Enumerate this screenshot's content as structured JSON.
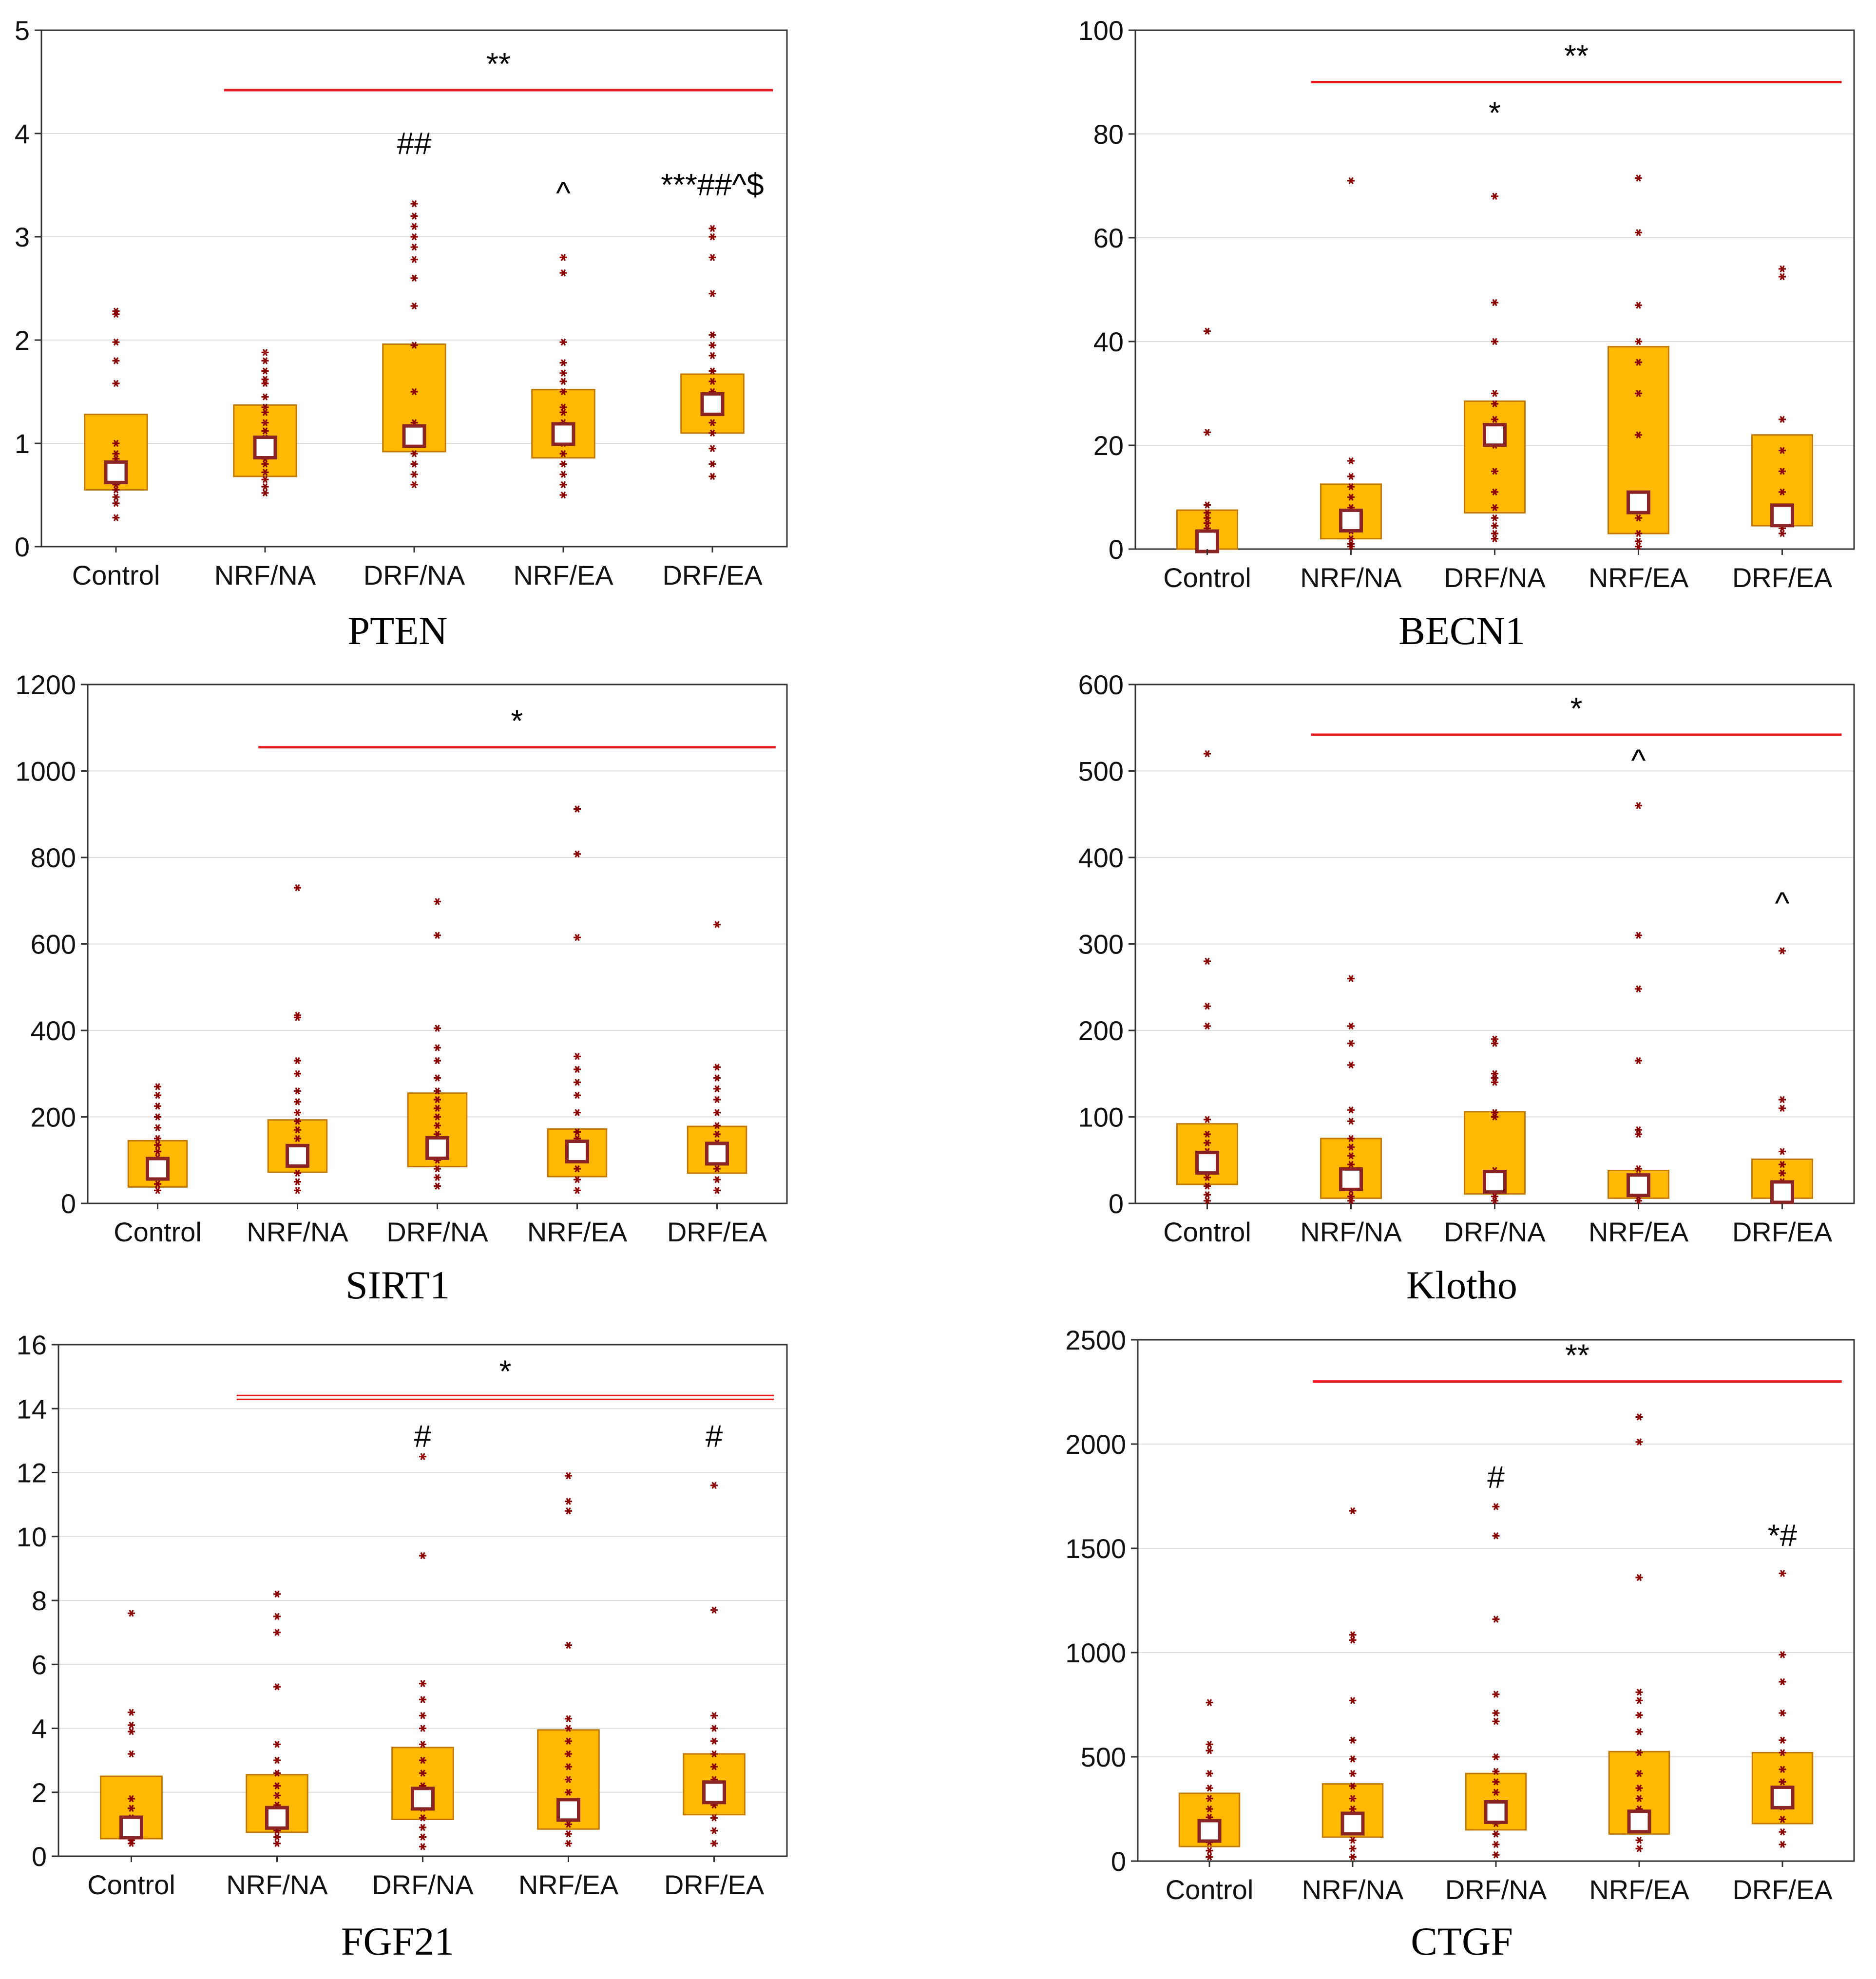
{
  "figure": {
    "groups": [
      "Control",
      "NRF/NA",
      "DRF/NA",
      "NRF/EA",
      "DRF/EA"
    ],
    "colors": {
      "box": "#FFBA00",
      "box_stroke": "#C07800",
      "median_fill": "#FFFFFF",
      "median_stroke": "#8B2525",
      "point": "#8B0000",
      "sig_line": "#E41A1C",
      "grid": "#DDDDDD"
    }
  },
  "chart_data": [
    {
      "type": "box",
      "title": "PTEN",
      "ylim": [
        0,
        5
      ],
      "yticks": [
        "0",
        "1",
        "2",
        "3",
        "4",
        "5"
      ],
      "categories": [
        "Control",
        "NRF/NA",
        "DRF/NA",
        "NRF/EA",
        "DRF/EA"
      ],
      "boxes": [
        {
          "q1": 0.55,
          "q3": 1.28,
          "median": 0.72
        },
        {
          "q1": 0.68,
          "q3": 1.37,
          "median": 0.96
        },
        {
          "q1": 0.92,
          "q3": 1.96,
          "median": 1.07
        },
        {
          "q1": 0.86,
          "q3": 1.52,
          "median": 1.09
        },
        {
          "q1": 1.1,
          "q3": 1.67,
          "median": 1.38
        }
      ],
      "points": [
        [
          0.28,
          0.42,
          0.48,
          0.55,
          0.6,
          0.65,
          0.7,
          0.75,
          0.8,
          0.85,
          0.9,
          1.0,
          1.58,
          1.8,
          1.98,
          2.25,
          2.28
        ],
        [
          0.52,
          0.58,
          0.65,
          0.72,
          0.8,
          0.85,
          0.9,
          0.95,
          1.0,
          1.05,
          1.12,
          1.2,
          1.3,
          1.35,
          1.45,
          1.58,
          1.62,
          1.7,
          1.8,
          1.88
        ],
        [
          0.6,
          0.7,
          0.8,
          0.9,
          1.0,
          1.1,
          1.2,
          1.5,
          1.95,
          2.33,
          2.6,
          2.78,
          2.9,
          3.0,
          3.1,
          3.2,
          3.32
        ],
        [
          0.5,
          0.6,
          0.7,
          0.8,
          0.9,
          1.0,
          1.1,
          1.2,
          1.3,
          1.35,
          1.5,
          1.6,
          1.68,
          1.78,
          1.98,
          2.65,
          2.8
        ],
        [
          0.68,
          0.8,
          0.95,
          1.1,
          1.2,
          1.3,
          1.4,
          1.5,
          1.6,
          1.7,
          1.85,
          1.95,
          2.05,
          2.45,
          2.8,
          3.0,
          3.08
        ]
      ],
      "sig_line": {
        "from": "NRF/NA",
        "to": "DRF/EA",
        "y": 4.42,
        "label": "**"
      },
      "annotations": [
        {
          "group": "DRF/NA",
          "y": 3.8,
          "text": "##"
        },
        {
          "group": "NRF/EA",
          "y": 3.32,
          "text": "^"
        },
        {
          "group": "DRF/EA",
          "y": 3.4,
          "text": "***##^$"
        }
      ]
    },
    {
      "type": "box",
      "title": "BECN1",
      "ylim": [
        0,
        100
      ],
      "yticks": [
        "0",
        "20",
        "40",
        "60",
        "80",
        "100"
      ],
      "categories": [
        "Control",
        "NRF/NA",
        "DRF/NA",
        "NRF/EA",
        "DRF/EA"
      ],
      "boxes": [
        {
          "q1": 0.0,
          "q3": 7.5,
          "median": 1.5
        },
        {
          "q1": 2.0,
          "q3": 12.5,
          "median": 5.5
        },
        {
          "q1": 7.0,
          "q3": 28.5,
          "median": 22.0
        },
        {
          "q1": 3.0,
          "q3": 39.0,
          "median": 9.0
        },
        {
          "q1": 4.5,
          "q3": 22.0,
          "median": 6.5
        }
      ],
      "points": [
        [
          0.5,
          1.0,
          2.0,
          3.0,
          4.0,
          5.0,
          6.0,
          7.0,
          8.5,
          22.5,
          42.0
        ],
        [
          0.5,
          1.0,
          2.0,
          3.5,
          5.0,
          6.0,
          8.0,
          10.0,
          12.0,
          14.0,
          17.0,
          71.0
        ],
        [
          2.0,
          3.0,
          4.5,
          6.0,
          8.0,
          11.0,
          15.0,
          20.0,
          22.0,
          25.0,
          28.0,
          30.0,
          40.0,
          47.5,
          68.0
        ],
        [
          0.5,
          1.5,
          3.0,
          6.0,
          8.5,
          10.0,
          22.0,
          30.0,
          36.0,
          40.0,
          47.0,
          61.0,
          71.5
        ],
        [
          3.0,
          4.0,
          5.5,
          7.0,
          11.0,
          15.0,
          19.0,
          25.0,
          52.5,
          54.0
        ]
      ],
      "sig_line": {
        "from": "NRF/NA",
        "to": "DRF/EA",
        "y": 90,
        "label": "**"
      },
      "annotations": [
        {
          "group": "DRF/NA",
          "y": 82,
          "text": "*"
        }
      ]
    },
    {
      "type": "box",
      "title": "SIRT1",
      "ylim": [
        0,
        1200
      ],
      "yticks": [
        "0",
        "200",
        "400",
        "600",
        "800",
        "1000",
        "1200"
      ],
      "categories": [
        "Control",
        "NRF/NA",
        "DRF/NA",
        "NRF/EA",
        "DRF/EA"
      ],
      "boxes": [
        {
          "q1": 38,
          "q3": 145,
          "median": 80
        },
        {
          "q1": 72,
          "q3": 193,
          "median": 110
        },
        {
          "q1": 85,
          "q3": 255,
          "median": 128
        },
        {
          "q1": 62,
          "q3": 172,
          "median": 120
        },
        {
          "q1": 70,
          "q3": 178,
          "median": 115
        }
      ],
      "points": [
        [
          30,
          45,
          60,
          75,
          90,
          105,
          120,
          135,
          150,
          175,
          200,
          225,
          250,
          270
        ],
        [
          30,
          50,
          70,
          90,
          110,
          130,
          150,
          170,
          190,
          210,
          235,
          260,
          300,
          330,
          430,
          435,
          730
        ],
        [
          40,
          60,
          80,
          100,
          120,
          140,
          160,
          180,
          200,
          220,
          240,
          260,
          290,
          330,
          360,
          405,
          620,
          698
        ],
        [
          30,
          55,
          80,
          105,
          130,
          150,
          165,
          210,
          250,
          280,
          310,
          340,
          615,
          808,
          912
        ],
        [
          30,
          55,
          80,
          100,
          120,
          140,
          160,
          180,
          210,
          240,
          265,
          290,
          315,
          645
        ]
      ],
      "sig_line": {
        "from": "NRF/NA",
        "to": "DRF/EA",
        "y": 1055,
        "label": "*"
      },
      "annotations": []
    },
    {
      "type": "box",
      "title": "Klotho",
      "ylim": [
        0,
        600
      ],
      "yticks": [
        "0",
        "100",
        "200",
        "300",
        "400",
        "500",
        "600"
      ],
      "categories": [
        "Control",
        "NRF/NA",
        "DRF/NA",
        "NRF/EA",
        "DRF/EA"
      ],
      "boxes": [
        {
          "q1": 22,
          "q3": 92,
          "median": 47
        },
        {
          "q1": 6,
          "q3": 75,
          "median": 28
        },
        {
          "q1": 11,
          "q3": 106,
          "median": 25
        },
        {
          "q1": 6,
          "q3": 38,
          "median": 21
        },
        {
          "q1": 6,
          "q3": 51,
          "median": 13
        }
      ],
      "points": [
        [
          3,
          10,
          20,
          30,
          40,
          50,
          60,
          70,
          80,
          97,
          205,
          228,
          280,
          520
        ],
        [
          3,
          8,
          15,
          25,
          35,
          45,
          55,
          65,
          75,
          95,
          108,
          160,
          185,
          205,
          260
        ],
        [
          3,
          8,
          15,
          22,
          30,
          38,
          100,
          105,
          140,
          145,
          150,
          185,
          190
        ],
        [
          3,
          8,
          12,
          18,
          25,
          32,
          40,
          80,
          85,
          165,
          248,
          310,
          460
        ],
        [
          3,
          8,
          12,
          18,
          25,
          35,
          45,
          60,
          110,
          120,
          292
        ]
      ],
      "sig_line": {
        "from": "NRF/NA",
        "to": "DRF/EA",
        "y": 542,
        "label": "*"
      },
      "annotations": [
        {
          "group": "NRF/EA",
          "y": 500,
          "text": "^"
        },
        {
          "group": "DRF/EA",
          "y": 335,
          "text": "^"
        }
      ]
    },
    {
      "type": "box",
      "title": "FGF21",
      "ylim": [
        0,
        16
      ],
      "yticks": [
        "0",
        "2",
        "4",
        "6",
        "8",
        "10",
        "12",
        "14",
        "16"
      ],
      "categories": [
        "Control",
        "NRF/NA",
        "DRF/NA",
        "NRF/EA",
        "DRF/EA"
      ],
      "boxes": [
        {
          "q1": 0.55,
          "q3": 2.5,
          "median": 0.9
        },
        {
          "q1": 0.75,
          "q3": 2.55,
          "median": 1.2
        },
        {
          "q1": 1.15,
          "q3": 3.4,
          "median": 1.8
        },
        {
          "q1": 0.85,
          "q3": 3.95,
          "median": 1.45
        },
        {
          "q1": 1.3,
          "q3": 3.2,
          "median": 2.0
        }
      ],
      "points": [
        [
          0.4,
          0.5,
          0.6,
          0.8,
          1.0,
          1.2,
          1.5,
          1.8,
          3.2,
          3.9,
          4.1,
          4.5,
          7.6
        ],
        [
          0.4,
          0.6,
          0.8,
          1.0,
          1.3,
          1.6,
          1.9,
          2.2,
          2.6,
          3.0,
          3.5,
          5.3,
          7.0,
          7.5,
          8.2
        ],
        [
          0.3,
          0.6,
          0.9,
          1.2,
          1.5,
          1.8,
          2.2,
          2.6,
          3.0,
          3.5,
          4.0,
          4.4,
          4.9,
          5.4,
          9.4,
          12.5
        ],
        [
          0.4,
          0.7,
          1.0,
          1.3,
          1.6,
          2.0,
          2.4,
          2.8,
          3.2,
          3.6,
          4.0,
          4.3,
          6.6,
          10.8,
          11.1,
          11.9
        ],
        [
          0.4,
          0.8,
          1.2,
          1.6,
          2.0,
          2.4,
          2.8,
          3.2,
          3.6,
          4.0,
          4.4,
          7.7,
          11.6
        ]
      ],
      "sig_line": {
        "from": "NRF/NA",
        "to": "DRF/EA",
        "y": 14.35,
        "label": "*",
        "double": true
      },
      "annotations": [
        {
          "group": "DRF/NA",
          "y": 12.8,
          "text": "#"
        },
        {
          "group": "DRF/EA",
          "y": 12.8,
          "text": "#"
        }
      ]
    },
    {
      "type": "box",
      "title": "CTGF",
      "ylim": [
        0,
        2500
      ],
      "yticks": [
        "0",
        "500",
        "1000",
        "1500",
        "2000",
        "2500"
      ],
      "categories": [
        "Control",
        "NRF/NA",
        "DRF/NA",
        "NRF/EA",
        "DRF/EA"
      ],
      "boxes": [
        {
          "q1": 70,
          "q3": 325,
          "median": 145
        },
        {
          "q1": 115,
          "q3": 370,
          "median": 180
        },
        {
          "q1": 150,
          "q3": 420,
          "median": 235
        },
        {
          "q1": 130,
          "q3": 525,
          "median": 190
        },
        {
          "q1": 180,
          "q3": 520,
          "median": 305
        }
      ],
      "points": [
        [
          20,
          50,
          90,
          130,
          170,
          210,
          250,
          300,
          350,
          420,
          530,
          560,
          760
        ],
        [
          20,
          60,
          100,
          150,
          200,
          250,
          300,
          360,
          420,
          490,
          580,
          770,
          1060,
          1085,
          1680
        ],
        [
          30,
          80,
          130,
          180,
          230,
          280,
          330,
          380,
          430,
          500,
          670,
          710,
          800,
          1160,
          1560,
          1700
        ],
        [
          60,
          100,
          150,
          200,
          250,
          300,
          350,
          420,
          520,
          620,
          700,
          770,
          810,
          1360,
          2010,
          2130
        ],
        [
          80,
          140,
          200,
          260,
          320,
          380,
          440,
          520,
          580,
          710,
          860,
          990,
          1380
        ]
      ],
      "sig_line": {
        "from": "NRF/NA",
        "to": "DRF/EA",
        "y": 2300,
        "label": "**"
      },
      "annotations": [
        {
          "group": "DRF/NA",
          "y": 1790,
          "text": "#"
        },
        {
          "group": "DRF/EA",
          "y": 1510,
          "text": "*#"
        }
      ]
    }
  ]
}
